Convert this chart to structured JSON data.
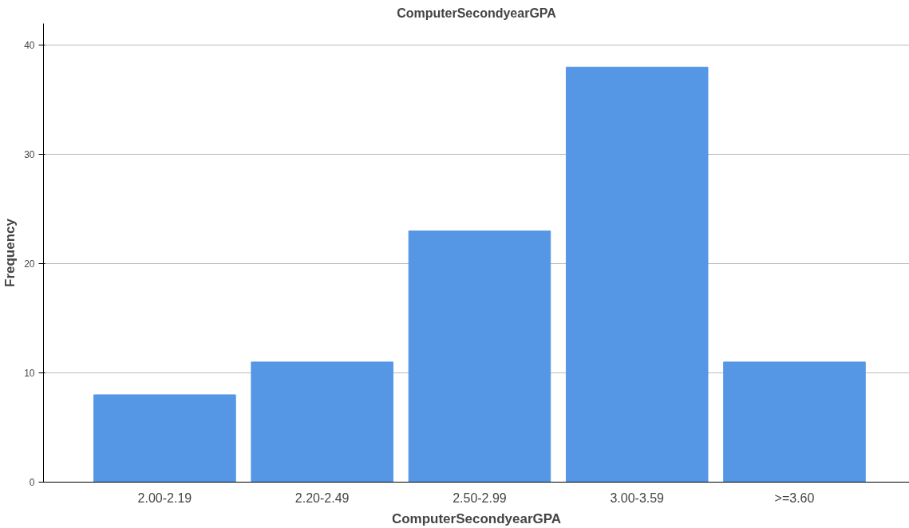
{
  "chart_data": {
    "type": "bar",
    "title": "ComputerSecondyearGPA",
    "xlabel": "ComputerSecondyearGPA",
    "ylabel": "Frequency",
    "categories": [
      "2.00-2.19",
      "2.20-2.49",
      "2.50-2.99",
      "3.00-3.59",
      ">=3.60"
    ],
    "values": [
      8,
      11,
      23,
      38,
      11
    ],
    "color": "#5596e5",
    "ylim": [
      0,
      42
    ],
    "yticks": [
      0,
      10,
      20,
      30,
      40
    ],
    "grid": "y"
  }
}
